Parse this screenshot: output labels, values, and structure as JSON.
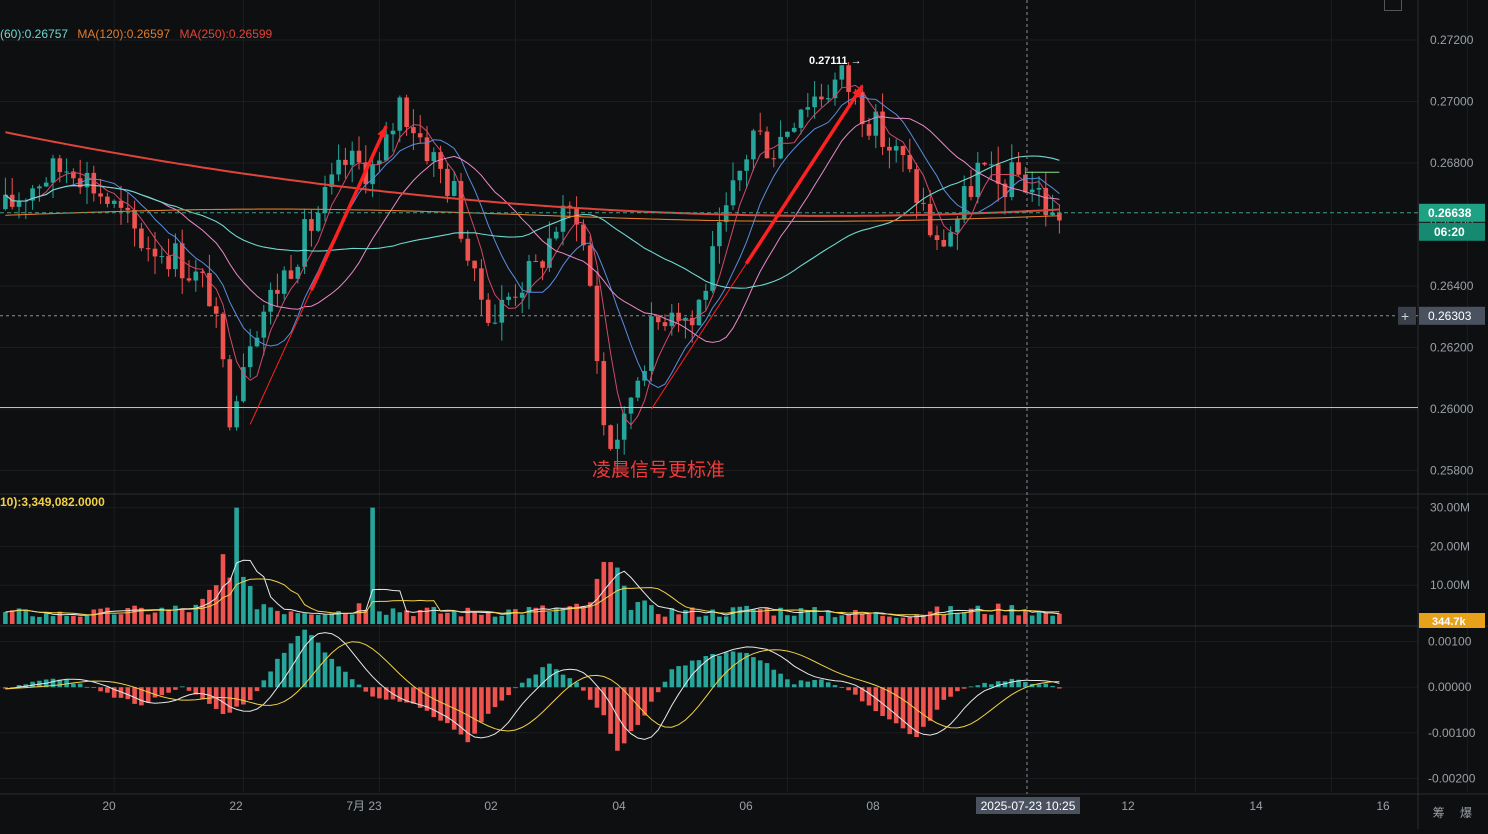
{
  "legend": {
    "ma60": "(60):0.26757",
    "ma120": "MA(120):0.26597",
    "ma250": "MA(250):0.26599",
    "volume_ma": "10):3,349,082.0000"
  },
  "annotation": "凌晨信号更标准",
  "peak_label": "0.27111 →",
  "price_axis": {
    "ticks": [
      "0.27200",
      "0.27000",
      "0.26800",
      "0.26600",
      "0.26400",
      "0.26200",
      "0.26000",
      "0.25800"
    ],
    "current_price": "0.26638",
    "countdown": "06:20",
    "crosshair_price": "0.26303"
  },
  "volume_axis": {
    "ticks": [
      "30.00M",
      "20.00M",
      "10.00M"
    ],
    "current_volume": "344.7k"
  },
  "macd_axis": {
    "ticks": [
      "0.00100",
      "0.00000",
      "-0.00100",
      "-0.00200"
    ]
  },
  "time_axis": {
    "ticks": [
      "20",
      "22",
      "7月 23",
      "02",
      "04",
      "06",
      "08",
      "12",
      "14",
      "16"
    ],
    "crosshair_time": "2025-07-23 10:25"
  },
  "corner_icons": "筹 爆",
  "colors": {
    "up": "#26a69a",
    "down": "#ef5350",
    "ma_pink": "#e889c8",
    "ma_cyan": "#6fd8d0",
    "ma_orange": "#e07b2b",
    "ma_red": "#e0443a",
    "support": "#8be38b",
    "arrow": "#ff2020",
    "volume_ma_yellow": "#f2d147",
    "price_tag": "#1fa184",
    "crosshair_tag": "#4a5260"
  },
  "chart_data": {
    "type": "candlestick",
    "price_range": [
      0.2573,
      0.2733
    ],
    "support_level": 0.26005,
    "current_price": 0.26638,
    "crosshair_price": 0.26303,
    "peak_price": 0.27111,
    "low_price": 0.258,
    "anchors_price": [
      [
        0,
        0.2665
      ],
      [
        5,
        0.2675
      ],
      [
        10,
        0.268
      ],
      [
        15,
        0.2668
      ],
      [
        20,
        0.2655
      ],
      [
        25,
        0.265
      ],
      [
        30,
        0.2638
      ],
      [
        33,
        0.26
      ],
      [
        36,
        0.2625
      ],
      [
        40,
        0.264
      ],
      [
        45,
        0.266
      ],
      [
        50,
        0.268
      ],
      [
        55,
        0.2678
      ],
      [
        58,
        0.27
      ],
      [
        62,
        0.2685
      ],
      [
        66,
        0.267
      ],
      [
        69,
        0.264
      ],
      [
        72,
        0.263
      ],
      [
        75,
        0.264
      ],
      [
        78,
        0.2645
      ],
      [
        81,
        0.266
      ],
      [
        84,
        0.2665
      ],
      [
        86,
        0.264
      ],
      [
        88,
        0.2595
      ],
      [
        90,
        0.2583
      ],
      [
        92,
        0.2605
      ],
      [
        95,
        0.2625
      ],
      [
        98,
        0.2635
      ],
      [
        101,
        0.2628
      ],
      [
        104,
        0.2648
      ],
      [
        107,
        0.267
      ],
      [
        110,
        0.269
      ],
      [
        113,
        0.2685
      ],
      [
        117,
        0.27
      ],
      [
        120,
        0.2703
      ],
      [
        123,
        0.2708
      ],
      [
        126,
        0.2698
      ],
      [
        129,
        0.2688
      ],
      [
        132,
        0.268
      ],
      [
        135,
        0.2665
      ],
      [
        137,
        0.2652
      ],
      [
        140,
        0.2662
      ],
      [
        143,
        0.2678
      ],
      [
        146,
        0.2672
      ],
      [
        149,
        0.2676
      ],
      [
        152,
        0.267
      ],
      [
        154,
        0.2662
      ],
      [
        155,
        0.2664
      ]
    ],
    "anchors_volume_m": [
      [
        0,
        3
      ],
      [
        10,
        2.5
      ],
      [
        20,
        3.5
      ],
      [
        28,
        4
      ],
      [
        32,
        10
      ],
      [
        34,
        13
      ],
      [
        36,
        7
      ],
      [
        40,
        4
      ],
      [
        50,
        3.5
      ],
      [
        54,
        6
      ],
      [
        56,
        4
      ],
      [
        65,
        3
      ],
      [
        75,
        3.5
      ],
      [
        85,
        4
      ],
      [
        87,
        9
      ],
      [
        89,
        14
      ],
      [
        91,
        7
      ],
      [
        95,
        3.5
      ],
      [
        105,
        3
      ],
      [
        110,
        4
      ],
      [
        120,
        3
      ],
      [
        130,
        2.5
      ],
      [
        140,
        3.5
      ],
      [
        150,
        4
      ],
      [
        155,
        2
      ]
    ],
    "anchors_macd": [
      [
        0,
        0.0
      ],
      [
        8,
        0.0002
      ],
      [
        14,
        -0.0001
      ],
      [
        20,
        -0.0004
      ],
      [
        26,
        5e-05
      ],
      [
        32,
        -0.0006
      ],
      [
        36,
        -0.0003
      ],
      [
        40,
        0.0006
      ],
      [
        44,
        0.0013
      ],
      [
        48,
        0.0006
      ],
      [
        54,
        -0.0002
      ],
      [
        60,
        -0.0004
      ],
      [
        64,
        -0.0007
      ],
      [
        68,
        -0.0012
      ],
      [
        72,
        -0.0004
      ],
      [
        76,
        0.0001
      ],
      [
        80,
        0.0005
      ],
      [
        84,
        0.0001
      ],
      [
        88,
        -0.0006
      ],
      [
        90,
        -0.0014
      ],
      [
        94,
        -0.0006
      ],
      [
        98,
        0.0004
      ],
      [
        104,
        0.0007
      ],
      [
        108,
        0.0008
      ],
      [
        112,
        0.0005
      ],
      [
        116,
        0.0001
      ],
      [
        120,
        0.0002
      ],
      [
        124,
        -0.0001
      ],
      [
        128,
        -0.0005
      ],
      [
        134,
        -0.0011
      ],
      [
        138,
        -0.0003
      ],
      [
        142,
        5e-05
      ],
      [
        148,
        0.00015
      ],
      [
        152,
        0.0001
      ],
      [
        155,
        -5e-05
      ]
    ],
    "macd_range": [
      -0.0023,
      0.0013
    ],
    "volume_range_m": [
      0,
      33
    ],
    "candle_count": 156
  }
}
